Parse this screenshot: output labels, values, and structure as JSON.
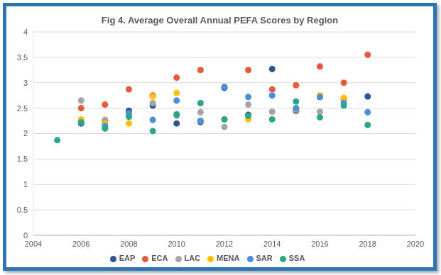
{
  "chart_data": {
    "type": "scatter",
    "title": "Fig 4. Average Overall Annual PEFA Scores by Region",
    "x": [
      2005,
      2006,
      2007,
      2008,
      2009,
      2010,
      2011,
      2012,
      2013,
      2014,
      2015,
      2016,
      2017,
      2018
    ],
    "series": [
      {
        "name": "EAP",
        "color": "#2E5597",
        "values": [
          null,
          2.2,
          2.25,
          2.45,
          2.55,
          2.2,
          2.23,
          2.9,
          2.37,
          3.27,
          2.45,
          2.72,
          2.68,
          2.73
        ]
      },
      {
        "name": "ECA",
        "color": "#E55A3C",
        "values": [
          null,
          2.5,
          2.57,
          2.87,
          2.75,
          3.1,
          3.25,
          null,
          3.25,
          2.87,
          2.95,
          3.32,
          3.0,
          3.55
        ]
      },
      {
        "name": "LAC",
        "color": "#A5A5A5",
        "values": [
          null,
          2.65,
          2.27,
          2.35,
          2.6,
          2.35,
          2.42,
          2.13,
          2.57,
          2.43,
          2.47,
          2.43,
          2.65,
          null
        ]
      },
      {
        "name": "MENA",
        "color": "#FFC000",
        "values": [
          null,
          2.28,
          2.2,
          2.2,
          2.73,
          2.8,
          2.25,
          2.28,
          2.28,
          null,
          2.5,
          2.75,
          2.7,
          null
        ]
      },
      {
        "name": "SAR",
        "color": "#4A90D9",
        "values": [
          null,
          2.22,
          2.15,
          2.4,
          2.27,
          2.65,
          2.25,
          2.92,
          2.72,
          2.75,
          2.5,
          2.72,
          2.6,
          2.42
        ]
      },
      {
        "name": "SSA",
        "color": "#2CA58D",
        "values": [
          1.87,
          2.22,
          2.1,
          2.33,
          2.05,
          2.38,
          2.6,
          2.28,
          2.35,
          2.28,
          2.63,
          2.32,
          2.55,
          2.17
        ]
      }
    ],
    "xlim": [
      2004,
      2020
    ],
    "xticks": [
      2004,
      2006,
      2008,
      2010,
      2012,
      2014,
      2016,
      2018,
      2020
    ],
    "ylim": [
      0,
      4
    ],
    "yticks": [
      0,
      0.5,
      1,
      1.5,
      2,
      2.5,
      3,
      3.5,
      4
    ],
    "grid": true,
    "legend": "bottom",
    "marker": "circle"
  }
}
